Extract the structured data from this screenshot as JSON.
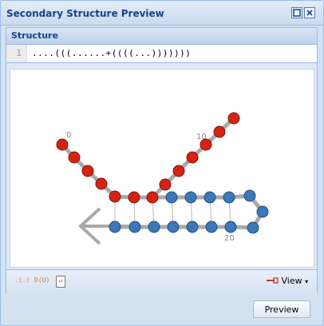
{
  "window": {
    "title": "Secondary Structure Preview"
  },
  "panel": {
    "title": "Structure"
  },
  "editor": {
    "line_number": "1",
    "structure": "....(((......+((((...)))))))"
  },
  "viewer": {
    "label_0": "0",
    "label_10": "10",
    "label_20": "20"
  },
  "toolbar": {
    "fmt_dotbracket": ".(.)",
    "fmt_dbn": "D(U)",
    "doc_glyph": "‹›",
    "view_label": "View"
  },
  "footer": {
    "preview_label": "Preview"
  },
  "colors": {
    "red_node": "#d42316",
    "blue_node": "#3b78b5",
    "backbone": "#aaaaaa"
  }
}
